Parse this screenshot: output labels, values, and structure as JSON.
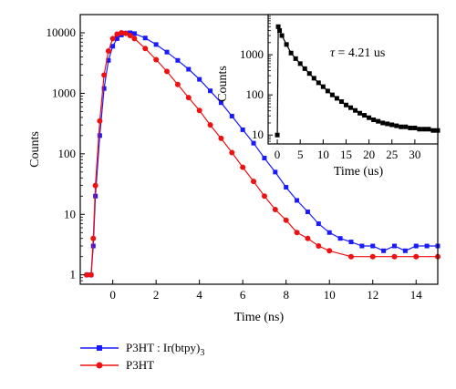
{
  "chart_data": [
    {
      "type": "scatter",
      "role": "main",
      "xlabel": "Time (ns)",
      "ylabel": "Counts",
      "xlim": [
        -1.5,
        15
      ],
      "ylim": [
        0.7,
        20000
      ],
      "yscale": "log",
      "x_ticks": [
        0,
        2,
        4,
        6,
        8,
        10,
        12,
        14
      ],
      "x_tick_labels": [
        "0",
        "2",
        "4",
        "6",
        "8",
        "10",
        "12",
        "14"
      ],
      "y_ticks": [
        1,
        10,
        100,
        1000,
        10000
      ],
      "y_tick_labels": [
        "1",
        "10",
        "100",
        "1000",
        "10000"
      ],
      "legend_position": "bottom-left, below plot",
      "series": [
        {
          "name_parts": [
            "P3HT : Ir(btpy)",
            "3"
          ],
          "color": "#1a1aff",
          "marker": "square",
          "points": [
            [
              -1.2,
              1
            ],
            [
              -1,
              1
            ],
            [
              -0.9,
              3
            ],
            [
              -0.8,
              20
            ],
            [
              -0.6,
              200
            ],
            [
              -0.4,
              1200
            ],
            [
              -0.2,
              3500
            ],
            [
              0,
              6000
            ],
            [
              0.2,
              8000
            ],
            [
              0.4,
              9200
            ],
            [
              0.6,
              9900
            ],
            [
              0.8,
              10000
            ],
            [
              1,
              9700
            ],
            [
              1.5,
              8200
            ],
            [
              2,
              6400
            ],
            [
              2.5,
              4800
            ],
            [
              3,
              3500
            ],
            [
              3.5,
              2500
            ],
            [
              4,
              1700
            ],
            [
              4.5,
              1100
            ],
            [
              5,
              700
            ],
            [
              5.5,
              420
            ],
            [
              6,
              250
            ],
            [
              6.5,
              150
            ],
            [
              7,
              85
            ],
            [
              7.5,
              50
            ],
            [
              8,
              28
            ],
            [
              8.5,
              17
            ],
            [
              9,
              11
            ],
            [
              9.5,
              7
            ],
            [
              10,
              5
            ],
            [
              10.5,
              4
            ],
            [
              11,
              3.5
            ],
            [
              11.5,
              3
            ],
            [
              12,
              3
            ],
            [
              12.5,
              2.5
            ],
            [
              13,
              3
            ],
            [
              13.5,
              2.5
            ],
            [
              14,
              3
            ],
            [
              14.5,
              3
            ],
            [
              15,
              3
            ]
          ]
        },
        {
          "name": "P3HT",
          "color": "#ee1111",
          "marker": "circle",
          "points": [
            [
              -1.2,
              1
            ],
            [
              -1,
              1
            ],
            [
              -0.9,
              4
            ],
            [
              -0.8,
              30
            ],
            [
              -0.6,
              350
            ],
            [
              -0.4,
              2000
            ],
            [
              -0.2,
              5000
            ],
            [
              0,
              8000
            ],
            [
              0.2,
              9500
            ],
            [
              0.4,
              10000
            ],
            [
              0.6,
              9800
            ],
            [
              0.8,
              9000
            ],
            [
              1,
              8000
            ],
            [
              1.5,
              5500
            ],
            [
              2,
              3600
            ],
            [
              2.5,
              2300
            ],
            [
              3,
              1400
            ],
            [
              3.5,
              850
            ],
            [
              4,
              520
            ],
            [
              4.5,
              300
            ],
            [
              5,
              180
            ],
            [
              5.5,
              105
            ],
            [
              6,
              60
            ],
            [
              6.5,
              35
            ],
            [
              7,
              20
            ],
            [
              7.5,
              12
            ],
            [
              8,
              8
            ],
            [
              8.5,
              5
            ],
            [
              9,
              4
            ],
            [
              9.5,
              3
            ],
            [
              10,
              2.5
            ],
            [
              11,
              2
            ],
            [
              12,
              2
            ],
            [
              13,
              2
            ],
            [
              14,
              2
            ],
            [
              15,
              2
            ]
          ]
        }
      ]
    },
    {
      "type": "scatter",
      "role": "inset",
      "xlabel": "Time (us)",
      "ylabel": "Counts",
      "xlim": [
        -2,
        35
      ],
      "ylim": [
        6,
        10000
      ],
      "yscale": "log",
      "x_ticks": [
        0,
        5,
        10,
        15,
        20,
        25,
        30
      ],
      "x_tick_labels": [
        "0",
        "5",
        "10",
        "15",
        "20",
        "25",
        "30"
      ],
      "y_ticks": [
        10,
        100,
        1000
      ],
      "y_tick_labels": [
        "10",
        "100",
        "1000"
      ],
      "annotation": {
        "symbol": "τ",
        "text": " = 4.21 us"
      },
      "series": [
        {
          "color": "#000000",
          "marker": "square",
          "points": [
            [
              0,
              10
            ],
            [
              0.2,
              5000
            ],
            [
              0.5,
              4000
            ],
            [
              1,
              3000
            ],
            [
              2,
              1800
            ],
            [
              3,
              1100
            ],
            [
              4,
              800
            ],
            [
              5,
              600
            ],
            [
              6,
              450
            ],
            [
              7,
              340
            ],
            [
              8,
              260
            ],
            [
              9,
              200
            ],
            [
              10,
              160
            ],
            [
              11,
              125
            ],
            [
              12,
              100
            ],
            [
              13,
              82
            ],
            [
              14,
              68
            ],
            [
              15,
              56
            ],
            [
              16,
              48
            ],
            [
              17,
              41
            ],
            [
              18,
              35
            ],
            [
              19,
              31
            ],
            [
              20,
              27
            ],
            [
              21,
              24
            ],
            [
              22,
              22
            ],
            [
              23,
              20
            ],
            [
              24,
              19
            ],
            [
              25,
              18
            ],
            [
              26,
              17
            ],
            [
              27,
              16
            ],
            [
              28,
              16
            ],
            [
              29,
              15
            ],
            [
              30,
              15
            ],
            [
              31,
              14
            ],
            [
              32,
              14
            ],
            [
              33,
              14
            ],
            [
              34,
              13
            ],
            [
              35,
              13
            ]
          ]
        }
      ]
    }
  ]
}
